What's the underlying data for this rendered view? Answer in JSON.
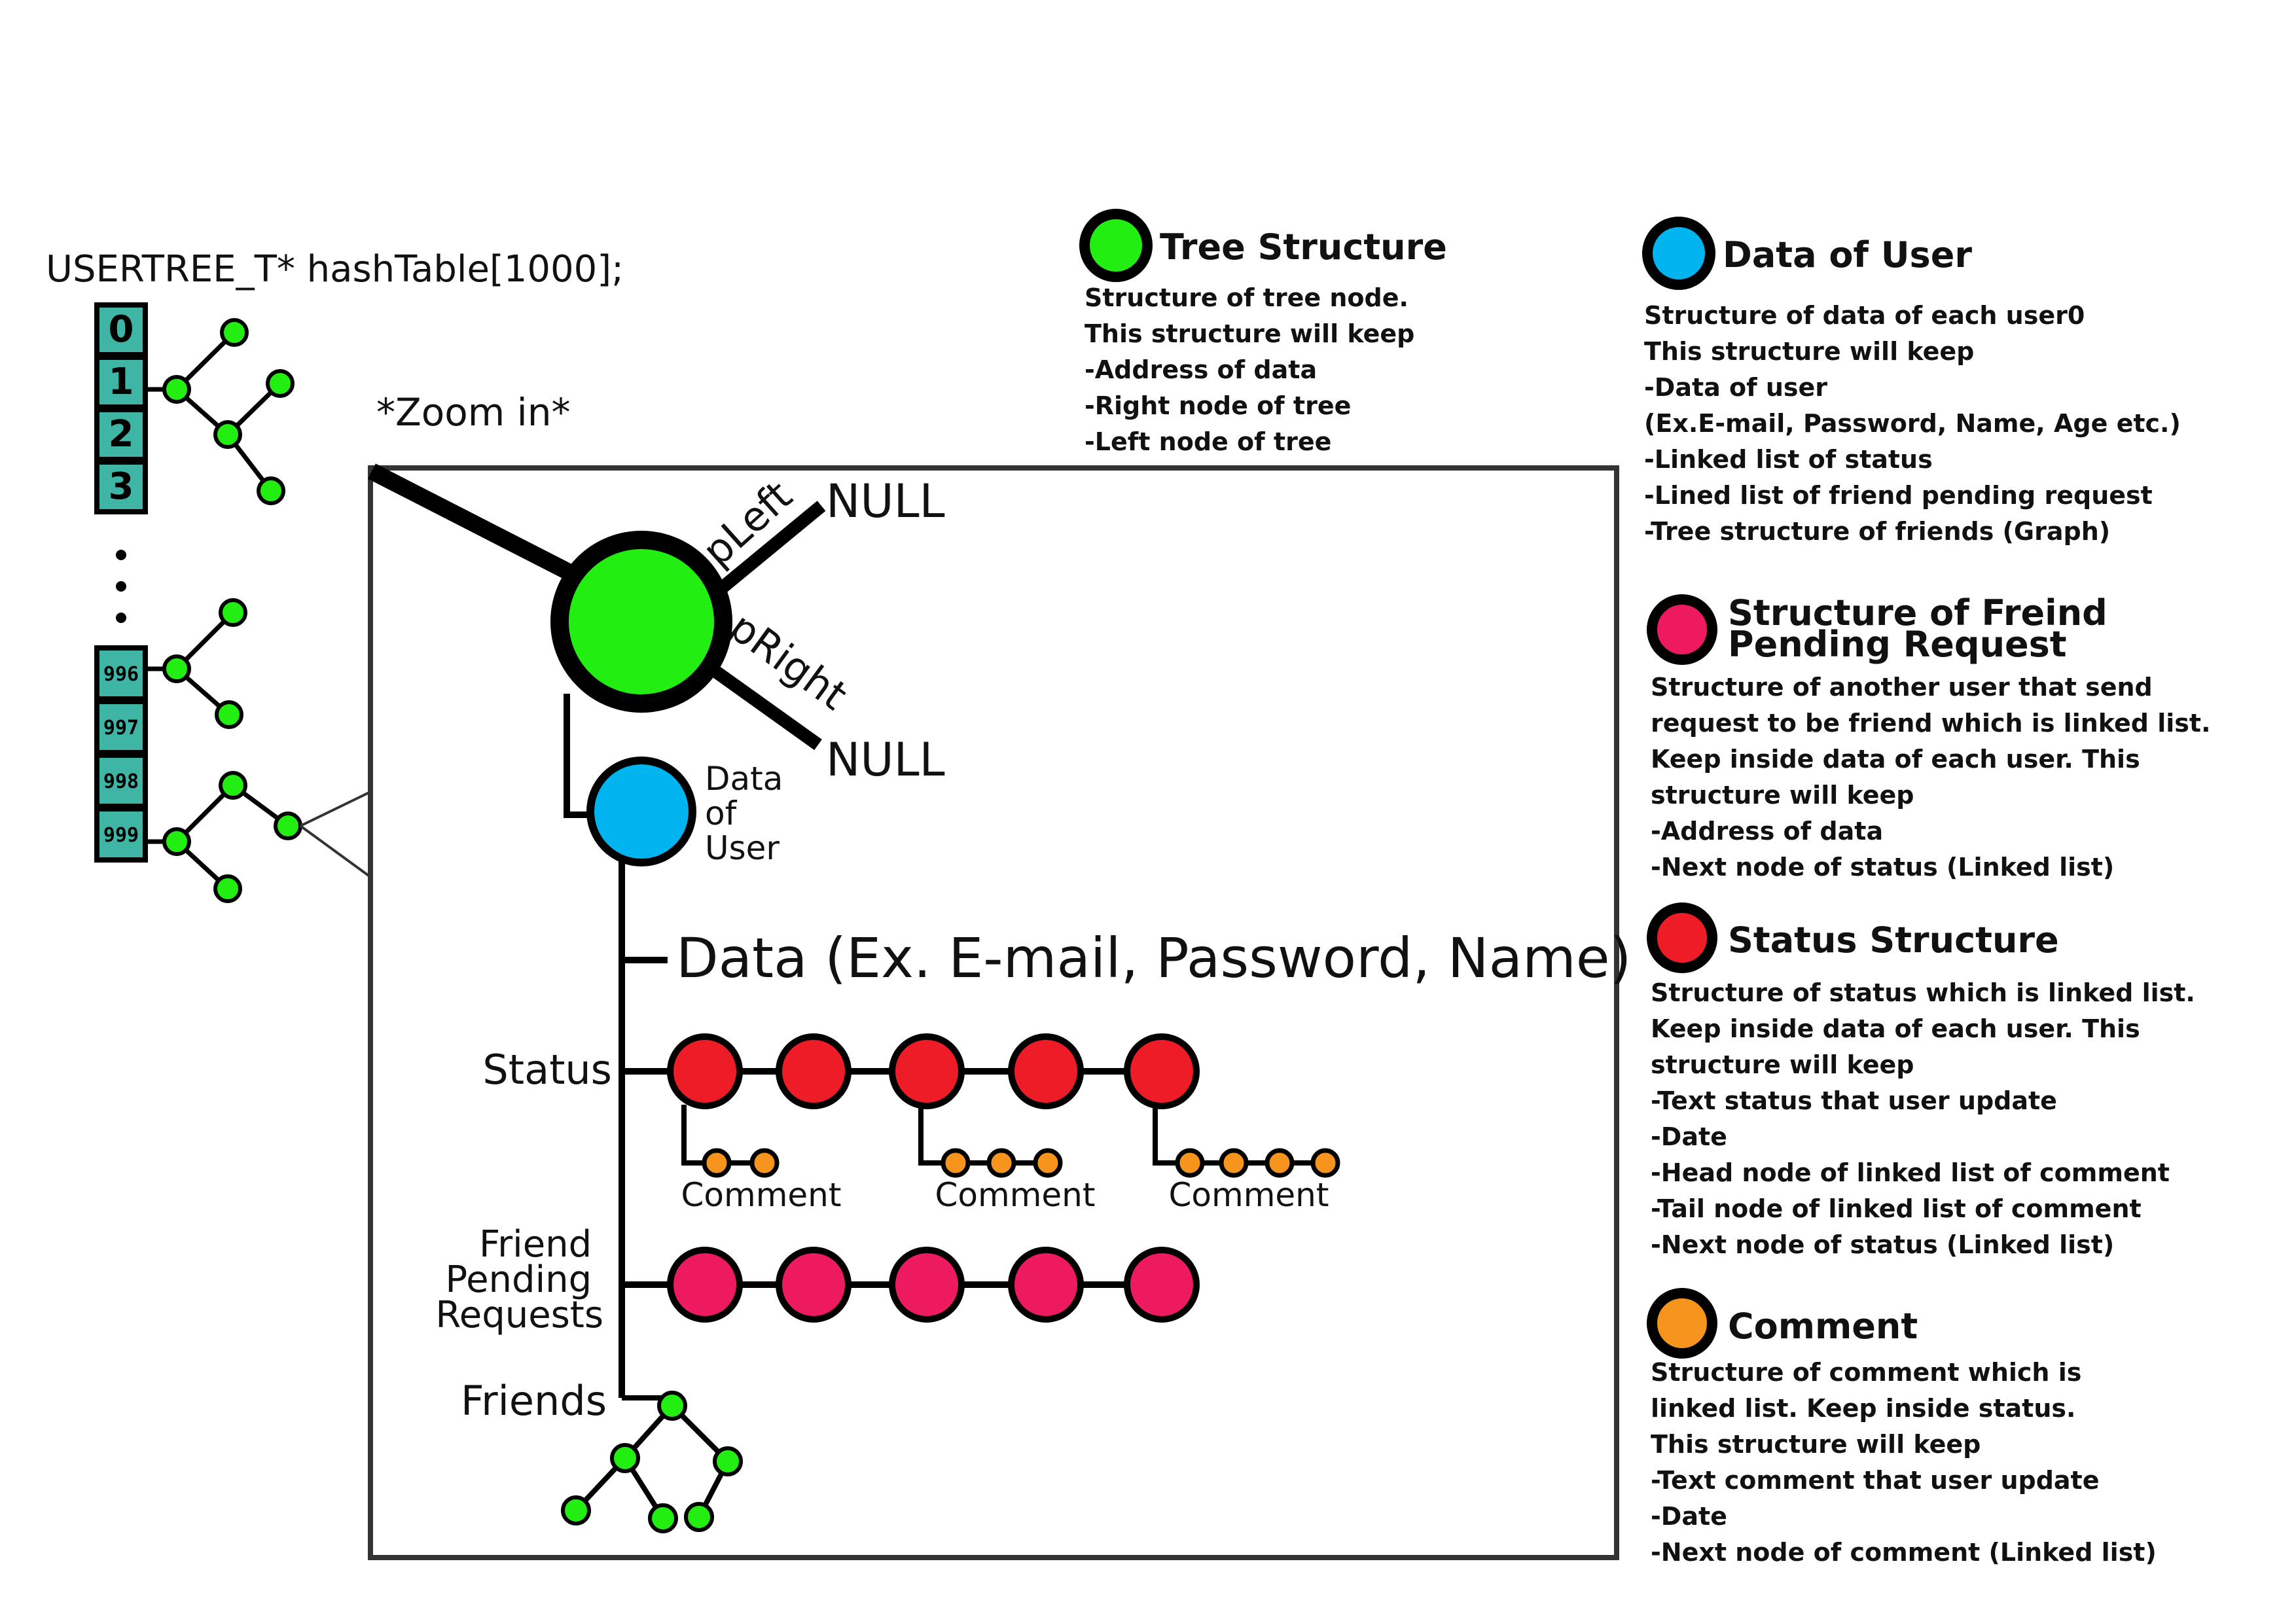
{
  "header": {
    "declaration": "USERTREE_T* hashTable[1000];",
    "zoom_label": "*Zoom in*"
  },
  "hash_table": {
    "top_indices": [
      "0",
      "1",
      "2",
      "3"
    ],
    "bottom_indices": [
      "996",
      "997",
      "998",
      "999"
    ],
    "cell_color": "#3fb5a6"
  },
  "zoom": {
    "pleft_label": "pLeft",
    "pright_label": "pRight",
    "null_left": "NULL",
    "null_right": "NULL",
    "data_of_user_lines": [
      "Data",
      "of",
      "User"
    ],
    "data_label": "Data (Ex. E-mail, Password, Name)",
    "status_label": "Status",
    "comment_labels": [
      "Comment",
      "Comment",
      "Comment"
    ],
    "friend_pending_lines": [
      "Friend",
      "Pending",
      "Requests"
    ],
    "friends_label": "Friends"
  },
  "legend": {
    "tree": {
      "title": "Tree Structure",
      "color": "#22ee11",
      "lines": [
        "Structure of tree node.",
        "This structure will keep",
        "-Address of data",
        "-Right node of tree",
        "-Left node of tree"
      ]
    },
    "user": {
      "title": "Data of User",
      "color": "#00b4f0",
      "lines": [
        "Structure of data of each user0",
        "This structure will keep",
        "-Data of user",
        "(Ex.E-mail, Password, Name, Age etc.)",
        "-Linked list of status",
        "-Lined list of friend pending request",
        "-Tree structure of friends (Graph)"
      ]
    },
    "friend_request": {
      "title_lines": [
        "Structure of Freind",
        "Pending Request"
      ],
      "color": "#ee1a60",
      "lines": [
        "Structure of another user that send",
        "request to be friend which is linked list.",
        "Keep inside data of each user. This",
        "structure will keep",
        "-Address of data",
        "-Next node of status (Linked list)"
      ]
    },
    "status": {
      "title": "Status Structure",
      "color": "#ee1c26",
      "lines": [
        "Structure of status which is linked list.",
        "Keep inside data of each user. This",
        "structure will keep",
        "-Text status that user update",
        "-Date",
        "-Head node of linked list of comment",
        "-Tail node of linked list of comment",
        "-Next node of status (Linked list)"
      ]
    },
    "comment": {
      "title": "Comment",
      "color": "#f7941d",
      "lines": [
        "Structure of comment which is",
        "linked list. Keep inside status.",
        "This structure will keep",
        "-Text comment that user update",
        "-Date",
        "-Next node of comment (Linked list)"
      ]
    }
  }
}
